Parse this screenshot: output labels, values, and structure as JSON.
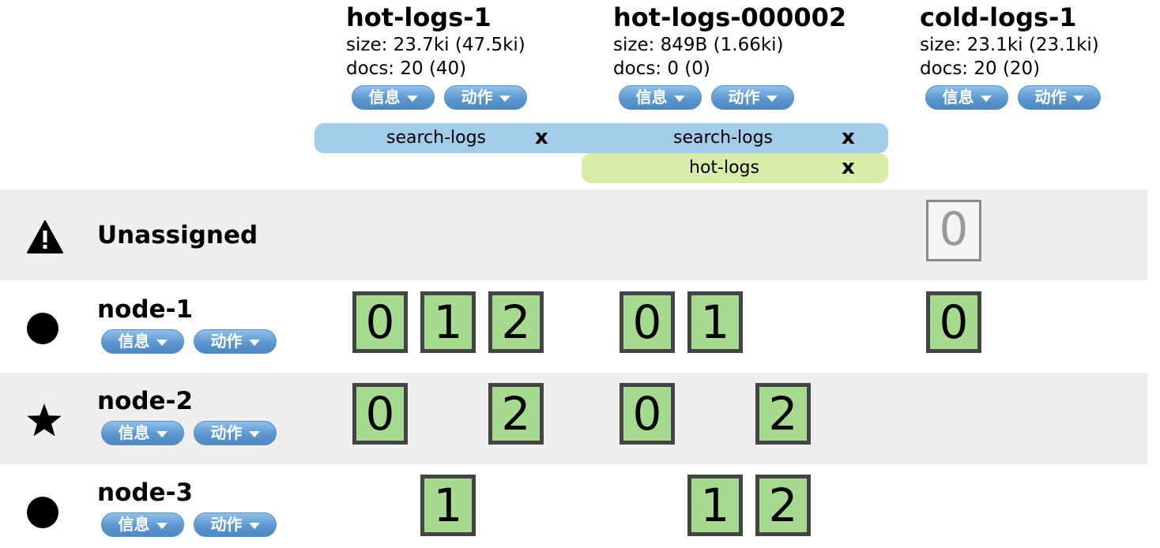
{
  "indices": [
    {
      "name": "hot-logs-1",
      "size": "size: 23.7ki (47.5ki)",
      "docs": "docs: 20 (40)",
      "info_label": "信息",
      "action_label": "动作"
    },
    {
      "name": "hot-logs-000002",
      "size": "size: 849B (1.66ki)",
      "docs": "docs: 0 (0)",
      "info_label": "信息",
      "action_label": "动作"
    },
    {
      "name": "cold-logs-1",
      "size": "size: 23.1ki (23.1ki)",
      "docs": "docs: 20 (20)",
      "info_label": "信息",
      "action_label": "动作"
    }
  ],
  "aliases": [
    {
      "label": "search-logs",
      "close": "x"
    },
    {
      "label": "search-logs",
      "close": "x"
    },
    {
      "label": "hot-logs",
      "close": "x"
    }
  ],
  "rows": {
    "unassigned": {
      "name": "Unassigned",
      "icon": "warning-icon",
      "shards": [
        "0"
      ]
    },
    "node1": {
      "name": "node-1",
      "icon": "circle-icon",
      "info_label": "信息",
      "action_label": "动作",
      "shards": [
        "0",
        "1",
        "2",
        "0",
        "1",
        "0"
      ]
    },
    "node2": {
      "name": "node-2",
      "icon": "star-icon",
      "info_label": "信息",
      "action_label": "动作",
      "shards": [
        "0",
        "2",
        "0",
        "2"
      ]
    },
    "node3": {
      "name": "node-3",
      "icon": "circle-icon",
      "info_label": "信息",
      "action_label": "动作",
      "shards": [
        "1",
        "1",
        "2"
      ]
    }
  },
  "colors": {
    "shard_fill": "#a6da8f",
    "shard_border": "#444444",
    "alias_blue": "#a3cbea",
    "alias_green": "#d7eda8",
    "button": "#5d97cf",
    "row_grey": "#eeeeee"
  }
}
